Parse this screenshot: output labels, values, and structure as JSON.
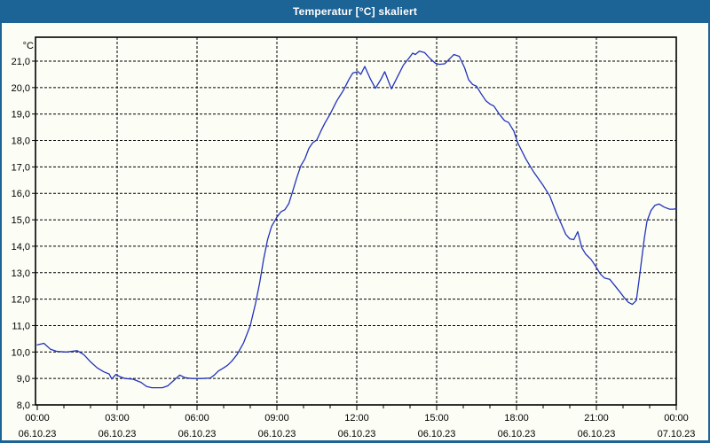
{
  "window": {
    "title": "Temperatur [°C] skaliert"
  },
  "colors": {
    "titlebar": "#1c6396",
    "frame": "#1c6396",
    "background": "#fcfdf5",
    "line": "#2233bb",
    "grid": "#000000",
    "text": "#000000"
  },
  "chart_data": {
    "type": "line",
    "title": "Temperatur [°C] skaliert",
    "unit_label": "°C",
    "ylabel": "°C",
    "xlabel": "",
    "ylim": [
      8.0,
      22.0
    ],
    "xlim_hours": [
      0,
      24
    ],
    "grid": true,
    "legend": "none",
    "y_ticks": [
      {
        "value": 8,
        "label": "8,0"
      },
      {
        "value": 9,
        "label": "9,0"
      },
      {
        "value": 10,
        "label": "10,0"
      },
      {
        "value": 11,
        "label": "11,0"
      },
      {
        "value": 12,
        "label": "12,0"
      },
      {
        "value": 13,
        "label": "13,0"
      },
      {
        "value": 14,
        "label": "14,0"
      },
      {
        "value": 15,
        "label": "15,0"
      },
      {
        "value": 16,
        "label": "16,0"
      },
      {
        "value": 17,
        "label": "17,0"
      },
      {
        "value": 18,
        "label": "18,0"
      },
      {
        "value": 19,
        "label": "19,0"
      },
      {
        "value": 20,
        "label": "20,0"
      },
      {
        "value": 21,
        "label": "21,0"
      }
    ],
    "x_ticks": [
      {
        "hour": 0,
        "time": "00:00",
        "date": "06.10.23"
      },
      {
        "hour": 3,
        "time": "03:00",
        "date": "06.10.23"
      },
      {
        "hour": 6,
        "time": "06:00",
        "date": "06.10.23"
      },
      {
        "hour": 9,
        "time": "09:00",
        "date": "06.10.23"
      },
      {
        "hour": 12,
        "time": "12:00",
        "date": "06.10.23"
      },
      {
        "hour": 15,
        "time": "15:00",
        "date": "06.10.23"
      },
      {
        "hour": 18,
        "time": "18:00",
        "date": "06.10.23"
      },
      {
        "hour": 21,
        "time": "21:00",
        "date": "06.10.23"
      },
      {
        "hour": 24,
        "time": "00:00",
        "date": "07.10.23"
      }
    ],
    "minor_tick_every_hours": 1,
    "series": [
      {
        "name": "Temperatur",
        "color": "#2233bb",
        "points": [
          [
            0,
            10.27
          ],
          [
            0.25,
            10.33
          ],
          [
            0.5,
            10.1
          ],
          [
            0.75,
            10.02
          ],
          [
            1.1,
            10.0
          ],
          [
            1.5,
            10.05
          ],
          [
            1.75,
            9.9
          ],
          [
            2,
            9.63
          ],
          [
            2.25,
            9.4
          ],
          [
            2.5,
            9.25
          ],
          [
            2.7,
            9.17
          ],
          [
            2.8,
            8.98
          ],
          [
            2.95,
            9.15
          ],
          [
            3.1,
            9.07
          ],
          [
            3.3,
            9.0
          ],
          [
            3.6,
            8.97
          ],
          [
            3.9,
            8.85
          ],
          [
            4.1,
            8.7
          ],
          [
            4.3,
            8.65
          ],
          [
            4.7,
            8.65
          ],
          [
            4.9,
            8.72
          ],
          [
            5.1,
            8.9
          ],
          [
            5.35,
            9.13
          ],
          [
            5.55,
            9.03
          ],
          [
            5.8,
            9.0
          ],
          [
            6.2,
            9.0
          ],
          [
            6.5,
            9.02
          ],
          [
            6.65,
            9.13
          ],
          [
            6.8,
            9.28
          ],
          [
            7,
            9.4
          ],
          [
            7.15,
            9.5
          ],
          [
            7.3,
            9.65
          ],
          [
            7.5,
            9.9
          ],
          [
            7.75,
            10.35
          ],
          [
            8,
            11.0
          ],
          [
            8.2,
            11.85
          ],
          [
            8.35,
            12.6
          ],
          [
            8.5,
            13.5
          ],
          [
            8.65,
            14.25
          ],
          [
            8.8,
            14.75
          ],
          [
            9,
            15.1
          ],
          [
            9.15,
            15.3
          ],
          [
            9.3,
            15.38
          ],
          [
            9.45,
            15.62
          ],
          [
            9.6,
            16.1
          ],
          [
            9.75,
            16.6
          ],
          [
            9.9,
            17.05
          ],
          [
            10.05,
            17.3
          ],
          [
            10.2,
            17.7
          ],
          [
            10.35,
            17.92
          ],
          [
            10.5,
            18.02
          ],
          [
            10.65,
            18.35
          ],
          [
            10.8,
            18.65
          ],
          [
            11,
            19.0
          ],
          [
            11.25,
            19.5
          ],
          [
            11.5,
            19.9
          ],
          [
            11.7,
            20.3
          ],
          [
            11.85,
            20.55
          ],
          [
            12.05,
            20.6
          ],
          [
            12.15,
            20.5
          ],
          [
            12.3,
            20.8
          ],
          [
            12.5,
            20.35
          ],
          [
            12.7,
            19.97
          ],
          [
            12.9,
            20.3
          ],
          [
            13.05,
            20.6
          ],
          [
            13.3,
            19.95
          ],
          [
            13.55,
            20.45
          ],
          [
            13.75,
            20.85
          ],
          [
            13.95,
            21.1
          ],
          [
            14.1,
            21.3
          ],
          [
            14.2,
            21.25
          ],
          [
            14.35,
            21.38
          ],
          [
            14.55,
            21.32
          ],
          [
            14.75,
            21.1
          ],
          [
            14.95,
            20.92
          ],
          [
            15.1,
            20.88
          ],
          [
            15.3,
            20.9
          ],
          [
            15.45,
            21.05
          ],
          [
            15.65,
            21.25
          ],
          [
            15.85,
            21.18
          ],
          [
            16.05,
            20.75
          ],
          [
            16.2,
            20.3
          ],
          [
            16.35,
            20.12
          ],
          [
            16.5,
            20.05
          ],
          [
            16.65,
            19.8
          ],
          [
            16.85,
            19.5
          ],
          [
            17,
            19.38
          ],
          [
            17.15,
            19.3
          ],
          [
            17.35,
            19.0
          ],
          [
            17.55,
            18.75
          ],
          [
            17.7,
            18.68
          ],
          [
            17.9,
            18.35
          ],
          [
            18.05,
            17.9
          ],
          [
            18.35,
            17.3
          ],
          [
            18.65,
            16.8
          ],
          [
            19,
            16.3
          ],
          [
            19.25,
            15.9
          ],
          [
            19.5,
            15.25
          ],
          [
            19.7,
            14.8
          ],
          [
            19.85,
            14.45
          ],
          [
            20,
            14.28
          ],
          [
            20.15,
            14.25
          ],
          [
            20.3,
            14.55
          ],
          [
            20.45,
            13.95
          ],
          [
            20.6,
            13.7
          ],
          [
            20.8,
            13.5
          ],
          [
            21,
            13.2
          ],
          [
            21.15,
            12.95
          ],
          [
            21.3,
            12.8
          ],
          [
            21.5,
            12.75
          ],
          [
            21.7,
            12.5
          ],
          [
            21.9,
            12.25
          ],
          [
            22.05,
            12.05
          ],
          [
            22.2,
            11.88
          ],
          [
            22.35,
            11.8
          ],
          [
            22.5,
            11.95
          ],
          [
            22.6,
            12.7
          ],
          [
            22.7,
            13.5
          ],
          [
            22.8,
            14.3
          ],
          [
            22.9,
            14.95
          ],
          [
            23.05,
            15.35
          ],
          [
            23.2,
            15.55
          ],
          [
            23.35,
            15.6
          ],
          [
            23.55,
            15.48
          ],
          [
            23.75,
            15.4
          ],
          [
            23.9,
            15.4
          ],
          [
            24,
            15.43
          ]
        ]
      }
    ]
  }
}
